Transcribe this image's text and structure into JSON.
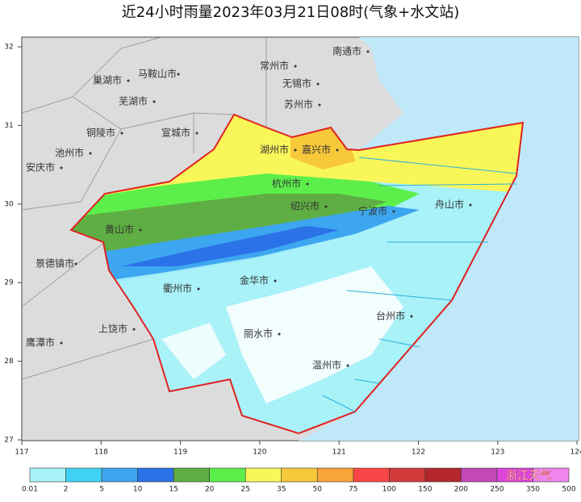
{
  "title": "近24小时雨量2023年03月21日08时(气象+水文站)",
  "map": {
    "cities": [
      "南通市",
      "马鞍山市",
      "常州市",
      "巢湖市",
      "无锡市",
      "芜湖市",
      "苏州市",
      "铜陵市",
      "宣城市",
      "池州市",
      "安庆市",
      "湖州市",
      "嘉兴市",
      "杭州市",
      "绍兴市",
      "宁波市",
      "舟山市",
      "黄山市",
      "景德镇市",
      "衢州市",
      "金华市",
      "上饶市",
      "台州市",
      "丽水市",
      "鹰潭市",
      "温州市"
    ],
    "lon_ticks": [
      117,
      118,
      119,
      120,
      121,
      122,
      123,
      124
    ],
    "lat_ticks": [
      32,
      31,
      30,
      29,
      28,
      27
    ]
  },
  "legend": {
    "labels": [
      "0.01",
      "2",
      "5",
      "10",
      "15",
      "20",
      "25",
      "35",
      "50",
      "75",
      "100",
      "150",
      "200",
      "250",
      "350",
      "500"
    ],
    "colors": [
      "#a8f2f8",
      "#3fd2f4",
      "#3da6f0",
      "#2b72e8",
      "#5fae43",
      "#5cef4b",
      "#f9f65a",
      "#f8c83b",
      "#f8a438",
      "#f94545",
      "#d23a3c",
      "#b3262c",
      "#c548b8",
      "#dd45dd",
      "#ef86ef"
    ]
  },
  "watermark": "浙江天气"
}
